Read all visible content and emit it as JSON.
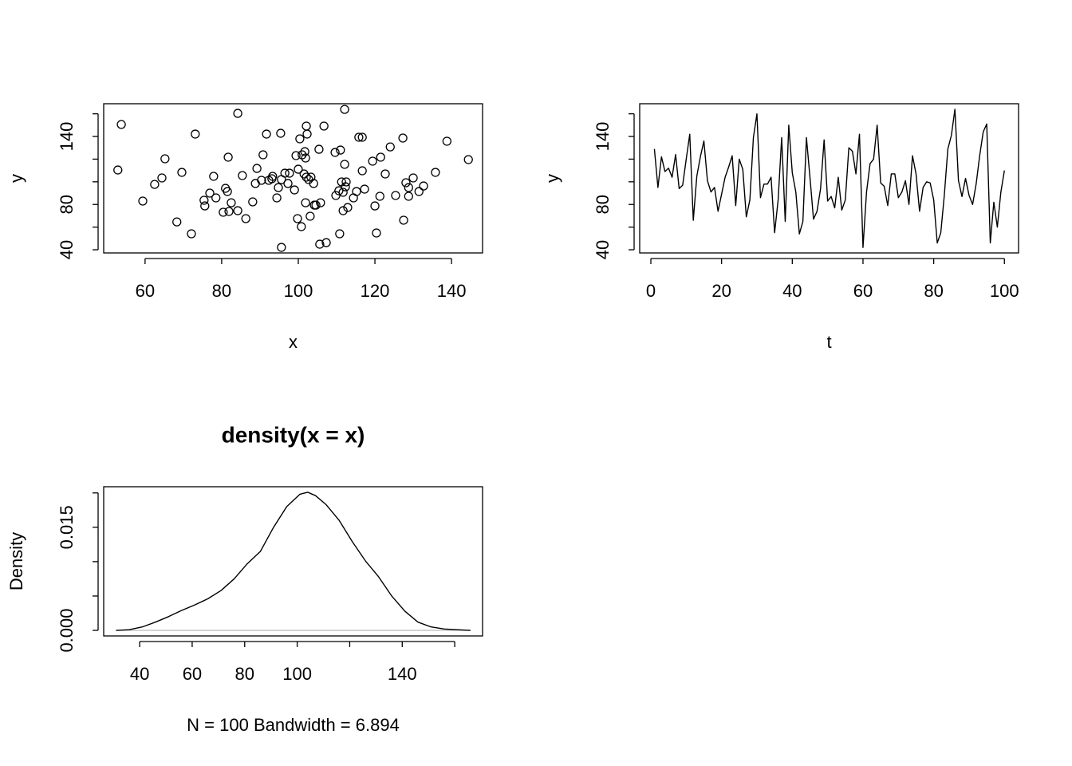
{
  "chart_data": [
    {
      "type": "scatter",
      "xlabel": "x",
      "ylabel": "y",
      "color": "#000000",
      "xlim": [
        49.2,
        148.1
      ],
      "ylim": [
        37.2,
        168.9
      ],
      "xticks": [
        60,
        80,
        100,
        120,
        140
      ],
      "yticks": [
        40,
        {
          "value": 60,
          "label": null
        },
        80,
        {
          "value": 100,
          "label": null
        },
        {
          "value": 120,
          "label": null
        },
        140,
        {
          "value": 160,
          "label": null
        }
      ],
      "x": [
        52.9,
        53.8,
        59.4,
        62.5,
        64.4,
        65.2,
        68.3,
        69.6,
        72.1,
        73.1,
        75.4,
        75.6,
        76.9,
        77.9,
        78.5,
        80.4,
        81.0,
        81.5,
        81.7,
        81.9,
        82.5,
        84.2,
        84.2,
        85.4,
        86.3,
        88.1,
        88.8,
        89.2,
        90.4,
        90.8,
        91.7,
        92.3,
        93.1,
        93.3,
        94.4,
        94.8,
        95.4,
        95.6,
        95.6,
        96.5,
        97.3,
        97.7,
        99.0,
        99.4,
        99.8,
        100.0,
        100.4,
        100.8,
        101.0,
        101.5,
        101.7,
        101.9,
        101.9,
        102.1,
        102.1,
        102.3,
        102.7,
        103.1,
        103.3,
        104.0,
        104.2,
        104.6,
        105.4,
        105.6,
        105.8,
        106.7,
        107.3,
        109.6,
        109.8,
        110.6,
        110.8,
        111.0,
        111.3,
        111.7,
        111.7,
        112.1,
        112.1,
        112.3,
        112.5,
        112.9,
        114.4,
        115.2,
        115.8,
        116.7,
        116.7,
        117.3,
        119.4,
        120.0,
        120.4,
        121.3,
        121.5,
        122.7,
        124.0,
        125.4,
        127.3,
        127.5,
        128.1,
        128.8,
        128.8,
        130.0,
        131.5,
        132.7,
        135.8,
        138.8,
        144.4
      ],
      "values": [
        110.4,
        150.6,
        83.0,
        97.7,
        103.4,
        120.3,
        64.6,
        108.3,
        54.1,
        142.1,
        83.7,
        78.7,
        90.0,
        104.8,
        85.8,
        73.1,
        94.2,
        91.4,
        121.7,
        73.8,
        81.5,
        74.5,
        160.4,
        105.5,
        67.5,
        82.3,
        98.5,
        111.8,
        101.3,
        123.8,
        142.1,
        101.3,
        102.7,
        104.8,
        85.8,
        94.9,
        142.8,
        42.1,
        102.0,
        107.6,
        98.5,
        107.6,
        92.8,
        123.1,
        67.5,
        111.1,
        137.9,
        60.4,
        123.8,
        106.9,
        126.6,
        121.0,
        81.5,
        149.2,
        104.1,
        142.1,
        102.0,
        69.6,
        104.1,
        98.5,
        79.4,
        79.4,
        128.7,
        44.9,
        81.5,
        149.2,
        46.3,
        125.9,
        87.9,
        92.1,
        54.1,
        128.0,
        99.9,
        74.5,
        90.7,
        115.4,
        163.9,
        95.6,
        99.9,
        77.3,
        85.8,
        91.4,
        139.3,
        139.3,
        109.7,
        93.5,
        118.2,
        78.7,
        54.8,
        87.2,
        121.7,
        106.9,
        130.8,
        87.9,
        138.6,
        66.1,
        99.2,
        94.9,
        87.2,
        103.4,
        91.4,
        96.3,
        108.3,
        135.8,
        119.6
      ]
    },
    {
      "type": "line",
      "xlabel": "t",
      "ylabel": "y",
      "color": "#000000",
      "xlim": [
        -3.16,
        104.0
      ],
      "ylim": [
        37.2,
        168.9
      ],
      "xticks": [
        0,
        20,
        40,
        60,
        80,
        100
      ],
      "yticks": [
        40,
        {
          "value": 60,
          "label": null
        },
        80,
        {
          "value": 100,
          "label": null
        },
        {
          "value": 120,
          "label": null
        },
        140,
        {
          "value": 160,
          "label": null
        }
      ],
      "x": [
        1,
        2,
        3,
        4,
        5,
        6,
        7,
        8,
        9,
        10,
        11,
        12,
        13,
        14,
        15,
        16,
        17,
        18,
        19,
        20,
        21,
        22,
        23,
        24,
        25,
        26,
        27,
        28,
        29,
        30,
        31,
        32,
        33,
        34,
        35,
        36,
        37,
        38,
        39,
        40,
        41,
        42,
        43,
        44,
        45,
        46,
        47,
        48,
        49,
        50,
        51,
        52,
        53,
        54,
        55,
        56,
        57,
        58,
        59,
        60,
        61,
        62,
        63,
        64,
        65,
        66,
        67,
        68,
        69,
        70,
        71,
        72,
        73,
        74,
        75,
        76,
        77,
        78,
        79,
        80,
        81,
        82,
        83,
        84,
        85,
        86,
        87,
        88,
        89,
        90,
        91,
        92,
        93,
        94,
        95,
        96,
        97,
        98,
        99,
        100
      ],
      "values": [
        129,
        95,
        122,
        109,
        112,
        104,
        124,
        94,
        97,
        120,
        142,
        66,
        105,
        122,
        136,
        101,
        91,
        95,
        74,
        89,
        104,
        113,
        123,
        79,
        120,
        111,
        69,
        84,
        139,
        160,
        86,
        98,
        98,
        104,
        55,
        84,
        139,
        65,
        150,
        108,
        91,
        54,
        65,
        139,
        104,
        67,
        74,
        94,
        137,
        83,
        87,
        77,
        104,
        75,
        84,
        130,
        127,
        107,
        142,
        42,
        91,
        116,
        120,
        150,
        99,
        96,
        79,
        107,
        107,
        86,
        91,
        101,
        80,
        123,
        107,
        74,
        95,
        100,
        99,
        84,
        46,
        55,
        88,
        129,
        141,
        164,
        101,
        87,
        103,
        88,
        80,
        98,
        123,
        144,
        151,
        46,
        82,
        60,
        91,
        110
      ]
    },
    {
      "type": "line",
      "title": "density(x = x)",
      "xlabel": "N = 100   Bandwidth = 6.894",
      "ylabel": "Density",
      "color": "#000000",
      "zero_line": true,
      "xlim": [
        26.3,
        170.6
      ],
      "ylim": [
        -0.00081,
        0.0209
      ],
      "xticks": [
        40,
        60,
        80,
        100,
        {
          "value": 120,
          "label": null
        },
        140,
        {
          "value": 160,
          "label": null
        }
      ],
      "yticks": [
        {
          "value": 0,
          "label": "0.000"
        },
        {
          "value": 0.005,
          "label": null
        },
        {
          "value": 0.01,
          "label": null
        },
        {
          "value": 0.015,
          "label": "0.015"
        },
        {
          "value": 0.02,
          "label": null
        }
      ],
      "x": [
        31,
        36,
        41,
        46,
        51,
        56,
        61,
        66,
        71,
        76,
        81,
        86,
        91,
        96,
        101,
        104,
        107,
        111,
        116,
        121,
        126,
        131,
        136,
        141,
        146,
        151,
        156,
        161,
        166
      ],
      "values": [
        0.0,
        0.0001,
        0.0005,
        0.0012,
        0.002,
        0.0029,
        0.0037,
        0.0046,
        0.0058,
        0.0075,
        0.0097,
        0.0115,
        0.015,
        0.018,
        0.0198,
        0.0201,
        0.0196,
        0.0183,
        0.016,
        0.0129,
        0.0101,
        0.0078,
        0.005,
        0.0028,
        0.0012,
        0.0005,
        0.0002,
        0.0001,
        0.0
      ]
    }
  ]
}
